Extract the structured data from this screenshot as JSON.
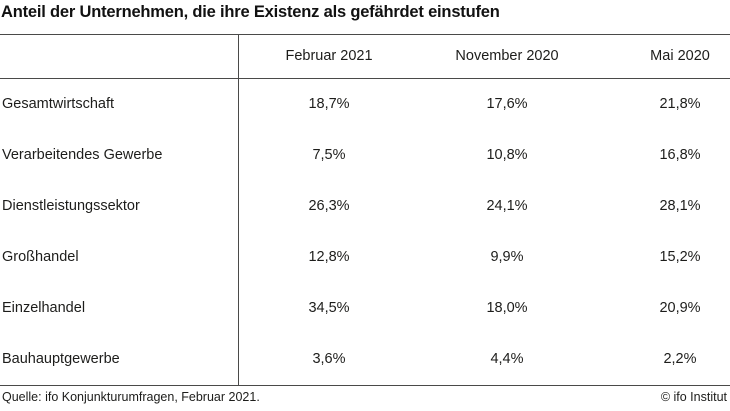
{
  "title": "Anteil der Unternehmen, die ihre Existenz als gefährdet einstufen",
  "table": {
    "columns": [
      "Februar 2021",
      "November 2020",
      "Mai 2020"
    ],
    "rows": [
      {
        "label": "Gesamtwirtschaft",
        "values": [
          "18,7%",
          "17,6%",
          "21,8%"
        ]
      },
      {
        "label": "Verarbeitendes Gewerbe",
        "values": [
          "7,5%",
          "10,8%",
          "16,8%"
        ]
      },
      {
        "label": "Dienstleistungssektor",
        "values": [
          "26,3%",
          "24,1%",
          "28,1%"
        ]
      },
      {
        "label": "Großhandel",
        "values": [
          "12,8%",
          "9,9%",
          "15,2%"
        ]
      },
      {
        "label": "Einzelhandel",
        "values": [
          "34,5%",
          "18,0%",
          "20,9%"
        ]
      },
      {
        "label": "Bauhauptgewerbe",
        "values": [
          "3,6%",
          "4,4%",
          "2,2%"
        ]
      }
    ]
  },
  "footer": {
    "source": "Quelle: ifo Konjunkturumfragen, Februar 2021.",
    "copyright": "© ifo Institut"
  },
  "colors": {
    "background": "#ffffff",
    "text": "#1d1d1b",
    "line": "#4a4a49"
  },
  "chart_data": {
    "type": "table",
    "title": "Anteil der Unternehmen, die ihre Existenz als gefährdet einstufen",
    "categories": [
      "Gesamtwirtschaft",
      "Verarbeitendes Gewerbe",
      "Dienstleistungssektor",
      "Großhandel",
      "Einzelhandel",
      "Bauhauptgewerbe"
    ],
    "series": [
      {
        "name": "Februar 2021",
        "values": [
          18.7,
          7.5,
          26.3,
          12.8,
          34.5,
          3.6
        ]
      },
      {
        "name": "November 2020",
        "values": [
          17.6,
          10.8,
          24.1,
          9.9,
          18.0,
          4.4
        ]
      },
      {
        "name": "Mai 2020",
        "values": [
          21.8,
          16.8,
          28.1,
          15.2,
          20.9,
          2.2
        ]
      }
    ],
    "unit": "%",
    "source": "Quelle: ifo Konjunkturumfragen, Februar 2021."
  }
}
